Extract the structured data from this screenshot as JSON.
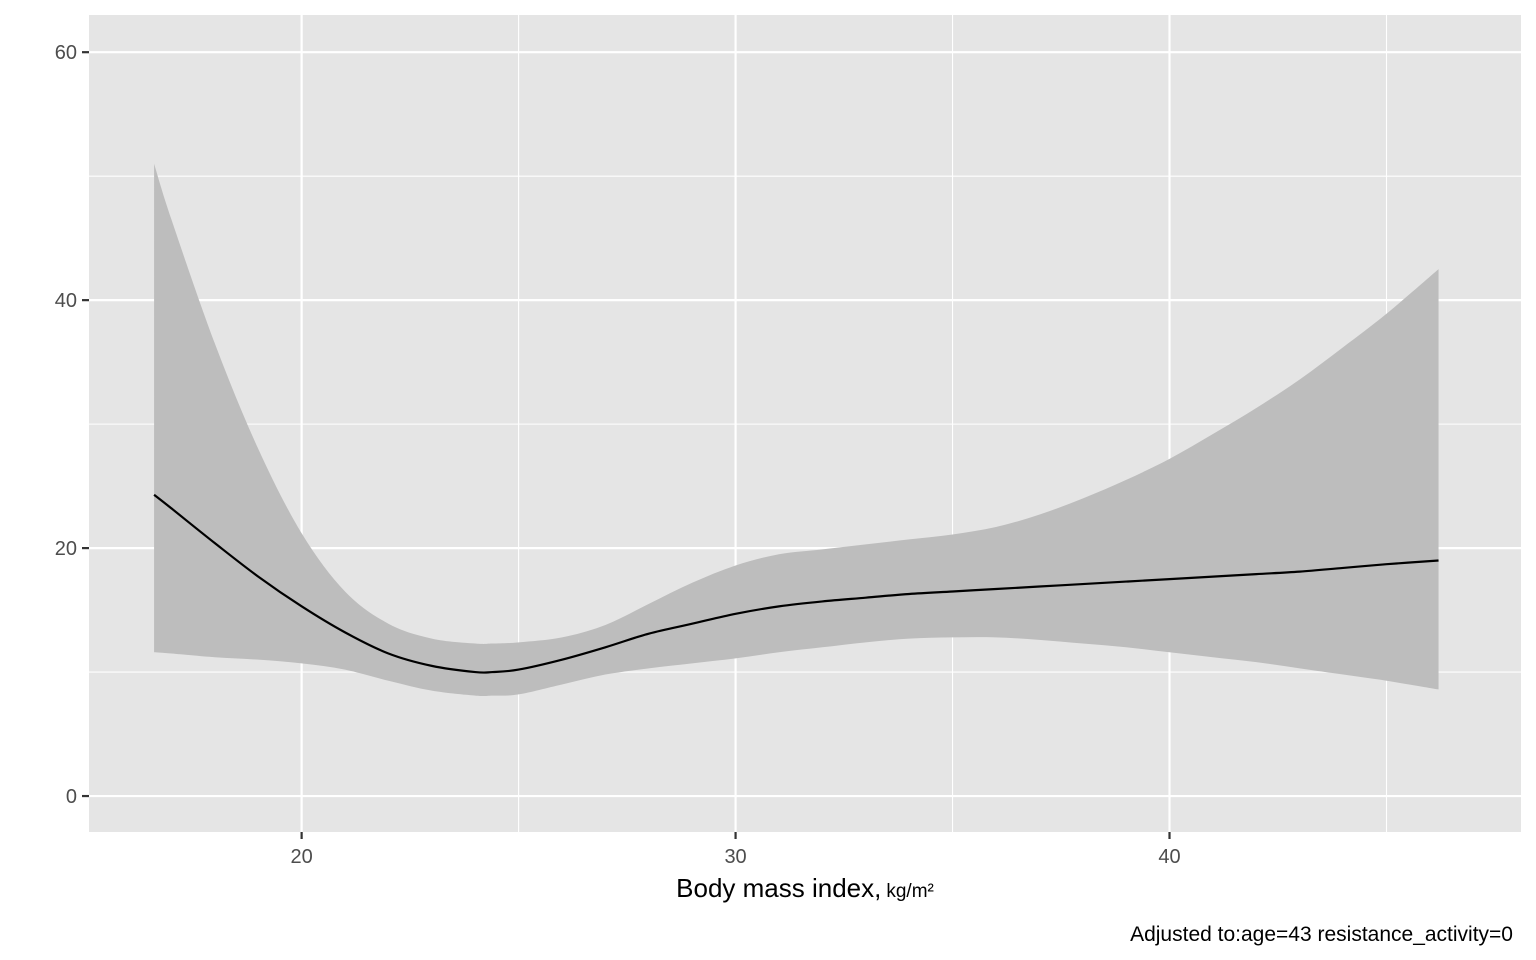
{
  "chart_data": {
    "type": "line",
    "title": "",
    "xlabel": "Body mass index,",
    "xlabel_unit": "kg/m²",
    "ylabel": "",
    "caption": "Adjusted to:age=43 resistance_activity=0",
    "xlim": [
      15.1,
      48.1
    ],
    "ylim": [
      -2.9,
      63
    ],
    "x_ticks": [
      20,
      30,
      40
    ],
    "x_minor_ticks": [
      25,
      35,
      45
    ],
    "y_ticks": [
      0,
      20,
      40,
      60
    ],
    "y_minor_ticks": [
      10,
      30,
      50
    ],
    "grid": true,
    "colors": {
      "panel": "#e5e5e5",
      "grid": "#ffffff",
      "band": "#bdbdbd",
      "line": "#000000"
    },
    "series": [
      {
        "x": [
          16.6,
          17,
          18,
          19,
          20,
          21,
          22,
          23,
          24,
          24.4,
          25,
          26,
          27,
          28,
          29,
          30,
          31,
          32,
          33,
          34,
          35,
          36,
          37,
          38,
          39,
          40,
          41,
          42,
          43,
          44,
          45,
          46.2
        ],
        "y": [
          24.3,
          23.2,
          20.4,
          17.7,
          15.3,
          13.2,
          11.5,
          10.5,
          10.0,
          10.0,
          10.2,
          11.0,
          12.0,
          13.1,
          13.9,
          14.7,
          15.3,
          15.7,
          16.0,
          16.3,
          16.5,
          16.7,
          16.9,
          17.1,
          17.3,
          17.5,
          17.7,
          17.9,
          18.1,
          18.4,
          18.7,
          19.0
        ],
        "lower": [
          11.6,
          11.5,
          11.2,
          11.0,
          10.7,
          10.2,
          9.3,
          8.5,
          8.1,
          8.1,
          8.2,
          9.0,
          9.8,
          10.3,
          10.7,
          11.1,
          11.6,
          12.0,
          12.4,
          12.7,
          12.8,
          12.8,
          12.6,
          12.3,
          12.0,
          11.6,
          11.2,
          10.8,
          10.3,
          9.8,
          9.3,
          8.6
        ],
        "upper": [
          51.0,
          46.5,
          36.5,
          28.0,
          21.2,
          16.5,
          13.9,
          12.7,
          12.3,
          12.3,
          12.4,
          12.8,
          13.8,
          15.5,
          17.2,
          18.6,
          19.5,
          19.9,
          20.3,
          20.7,
          21.1,
          21.7,
          22.7,
          24.0,
          25.5,
          27.2,
          29.2,
          31.3,
          33.6,
          36.2,
          38.9,
          42.5
        ]
      }
    ]
  }
}
